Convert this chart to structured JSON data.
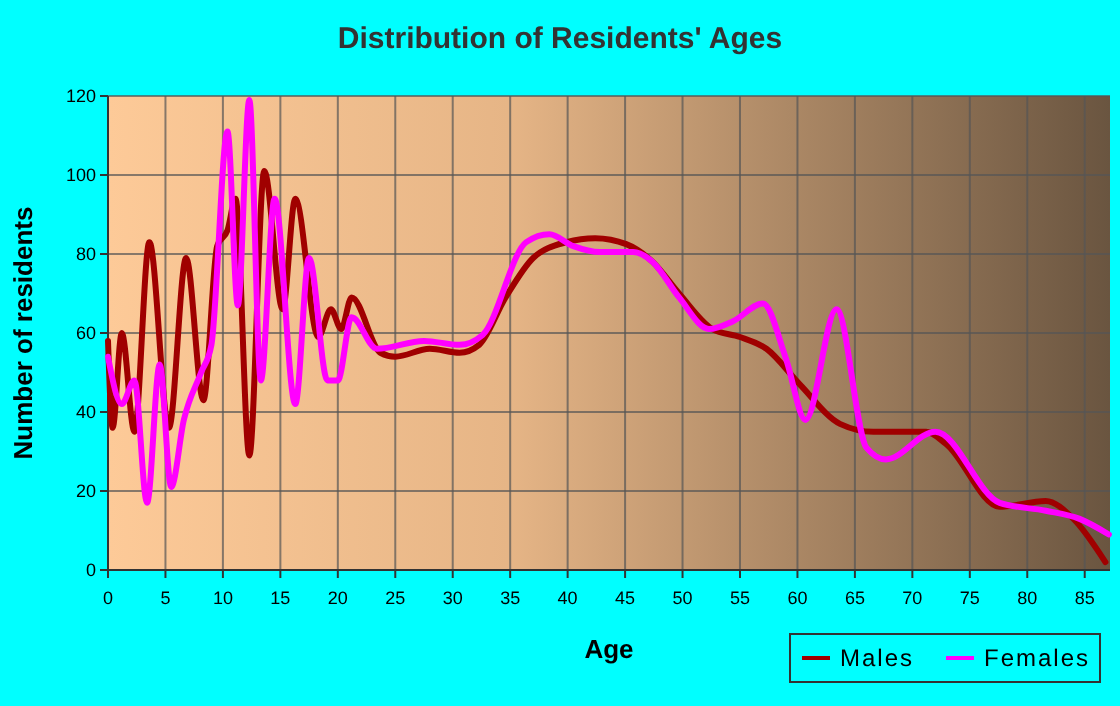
{
  "chart_data": {
    "type": "line",
    "title": "Distribution of Residents' Ages",
    "xlabel": "Age",
    "ylabel": "Number of residents",
    "xlim": [
      0,
      87.2
    ],
    "xticks": [
      0,
      5,
      10,
      15,
      20,
      25,
      30,
      35,
      40,
      45,
      50,
      55,
      60,
      65,
      70,
      75,
      80,
      85
    ],
    "ylim": [
      0,
      120
    ],
    "yticks": [
      0,
      20,
      40,
      60,
      80,
      100,
      120
    ],
    "grid": true,
    "legend": "bottom right",
    "marker": "none",
    "line_style": "solid",
    "series": [
      {
        "name": "Males",
        "color": "#a00000",
        "x": [
          0,
          0.4,
          1.2,
          2.3,
          3.6,
          5.3,
          6.8,
          8.3,
          9.5,
          10.4,
          11.1,
          12.3,
          13.6,
          15.2,
          16.3,
          18.3,
          19.4,
          20.3,
          21.2,
          23.7,
          25,
          28,
          30.6,
          32.3,
          34.6,
          37,
          39.9,
          42.4,
          45.1,
          47.4,
          49.7,
          52.6,
          55,
          57.3,
          60.2,
          63.7,
          66.6,
          71.2,
          72.9,
          77.6,
          81.6,
          84,
          86.8
        ],
        "values": [
          58,
          36,
          60,
          35,
          83,
          36,
          79,
          43,
          82,
          86,
          94,
          29,
          101,
          66,
          94,
          59,
          66,
          61,
          69,
          55,
          54,
          56,
          55,
          57,
          69,
          79,
          83,
          84,
          82.5,
          78,
          70,
          61,
          59,
          56,
          47,
          37,
          35,
          35,
          32,
          16,
          17.5,
          13,
          2
        ]
      },
      {
        "name": "Females",
        "color": "#ff00ff",
        "x": [
          0,
          1.2,
          2.3,
          3.4,
          4.5,
          5.5,
          6.6,
          8.1,
          9,
          10.4,
          11.3,
          12.3,
          13.3,
          14.5,
          16.3,
          17.5,
          19.1,
          20,
          21.2,
          23.4,
          27.5,
          30.6,
          32.6,
          36.4,
          38.4,
          40.5,
          42.8,
          45.7,
          47.4,
          49.7,
          52.3,
          54.4,
          57,
          59,
          60.7,
          63.4,
          66,
          67.7,
          72,
          77.6,
          81.6,
          84.5,
          87.1
        ],
        "values": [
          54,
          42,
          48,
          17,
          52,
          21,
          38,
          50,
          57,
          111,
          67,
          119,
          48,
          94,
          42,
          79,
          48,
          48,
          64,
          56,
          58,
          57,
          59.5,
          83,
          85,
          82,
          80.5,
          80.5,
          78,
          69,
          61,
          63,
          67.5,
          53.5,
          38,
          66,
          31,
          28,
          35,
          17,
          15,
          13,
          9
        ]
      }
    ]
  }
}
